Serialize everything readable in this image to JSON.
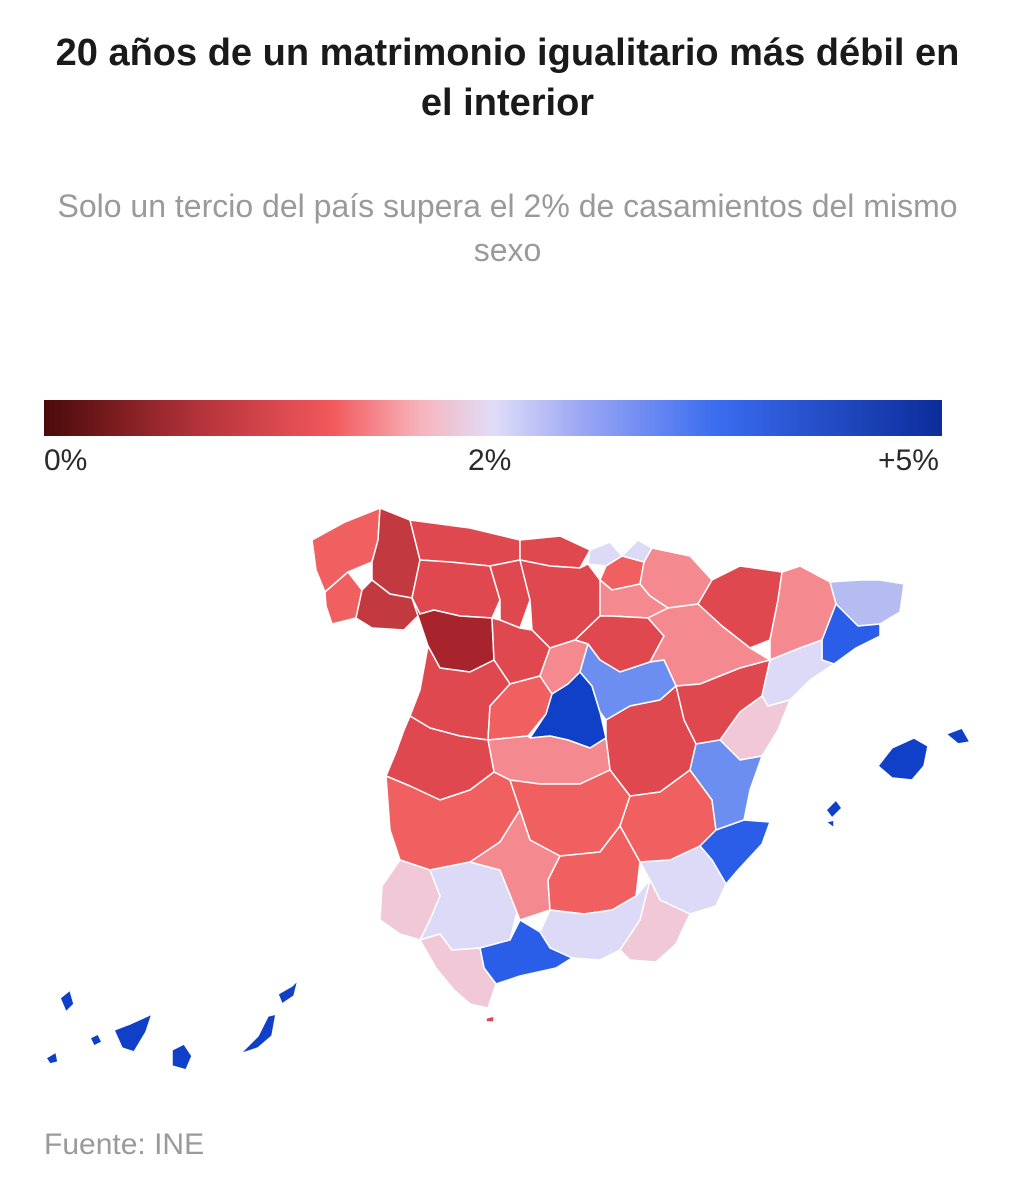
{
  "title": "20 años de un matrimonio igualitario más débil en el interior",
  "subtitle": "Solo un tercio del país supera el 2% de casamientos del mismo sexo",
  "legend": {
    "min_label": "0%",
    "mid_label": "2%",
    "max_label": "+5%",
    "colors": [
      "#4a0a0a",
      "#b8343c",
      "#f2585c",
      "#f7b4bc",
      "#e0ddf8",
      "#9aa6f4",
      "#3a6cf0",
      "#0c2c9a"
    ]
  },
  "map": {
    "description_units": "share of same-sex marriages (%)",
    "region_classes": {
      "darkred": "#c23a40",
      "red": "#e04850",
      "lightred": "#f06060",
      "salmon": "#f48a90",
      "pink": "#f0c8d8",
      "lavender": "#dcdaf6",
      "periwinkle": "#b4bcf2",
      "blue": "#6c8ef0",
      "royal": "#2a5ee8",
      "navy": "#1040c8",
      "deep": "#0a3ab6"
    }
  },
  "source": "Fuente: INE"
}
